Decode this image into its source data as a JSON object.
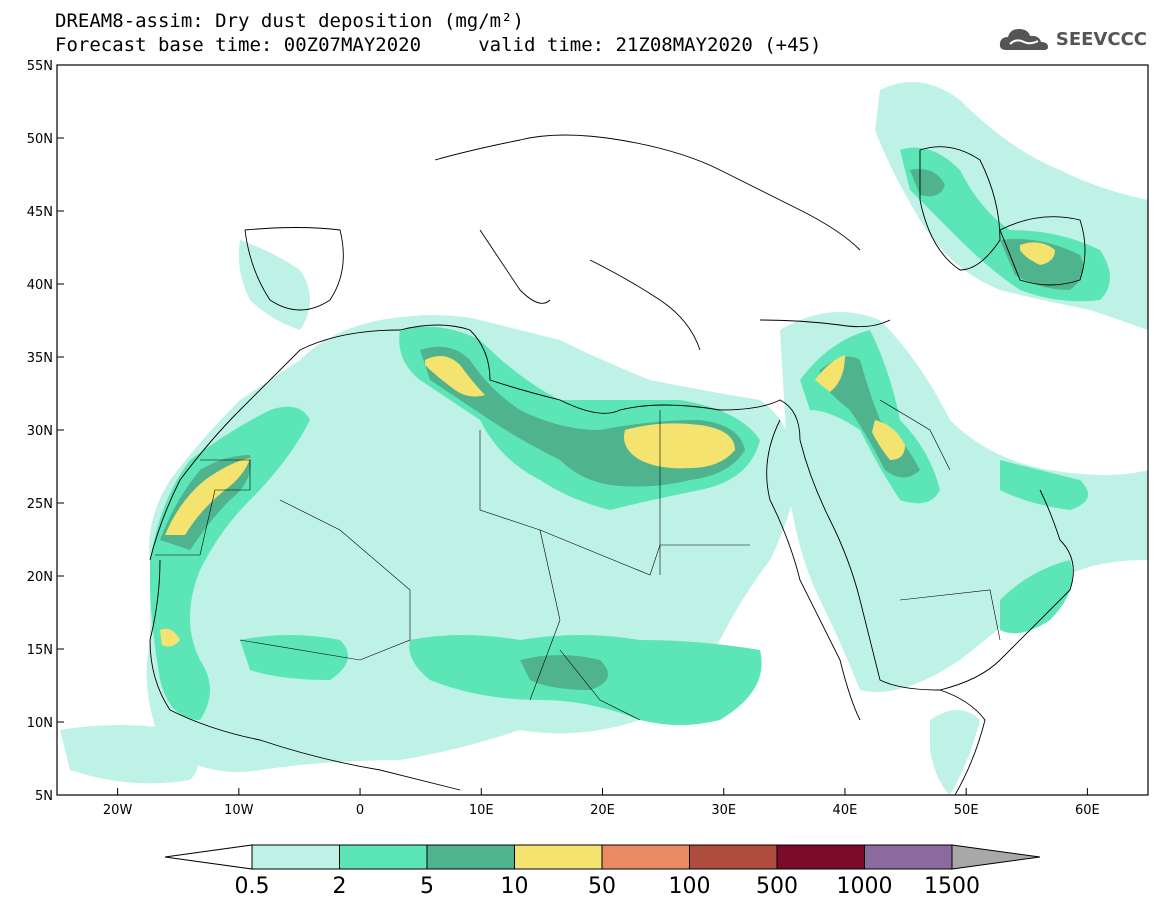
{
  "title": {
    "line1": "DREAM8-assim: Dry dust deposition (mg/m²)",
    "line2": "Forecast base time: 00Z07MAY2020     valid time: 21Z08MAY2020 (+45)"
  },
  "logo": {
    "text": "SEEVCCC",
    "icon": "cloud-icon"
  },
  "map": {
    "lat_ticks": [
      "55N",
      "50N",
      "45N",
      "40N",
      "35N",
      "30N",
      "25N",
      "20N",
      "15N",
      "10N",
      "5N"
    ],
    "lon_ticks": [
      "20W",
      "10W",
      "0",
      "10E",
      "20E",
      "30E",
      "40E",
      "50E",
      "60E"
    ],
    "extent": {
      "lon_min": -25,
      "lon_max": 65,
      "lat_min": 5,
      "lat_max": 55
    }
  },
  "colorbar": {
    "labels": [
      "0.5",
      "2",
      "5",
      "10",
      "50",
      "100",
      "500",
      "1000",
      "1500"
    ],
    "colors": [
      "#bff2e6",
      "#5ce6b8",
      "#4fb48e",
      "#f5e36f",
      "#eb8b63",
      "#b04c3e",
      "#7d0a2a",
      "#8c6aa0",
      "#a8a8a8"
    ],
    "under_color": "#ffffff"
  }
}
